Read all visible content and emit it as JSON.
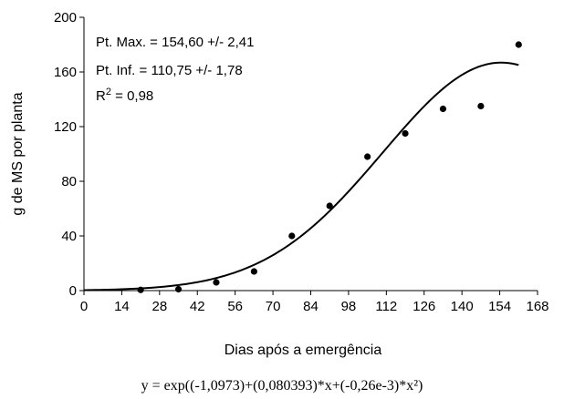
{
  "chart_data": {
    "type": "scatter",
    "xlabel": "Dias após a emergência",
    "ylabel": "g de MS por planta",
    "xlim": [
      0,
      168
    ],
    "ylim": [
      0,
      200
    ],
    "xticks": [
      0,
      14,
      28,
      42,
      56,
      70,
      84,
      98,
      112,
      126,
      140,
      154,
      168
    ],
    "yticks": [
      0,
      40,
      80,
      120,
      160,
      200
    ],
    "grid": false,
    "series": [
      {
        "type": "scatter",
        "x": [
          21,
          35,
          49,
          63,
          77,
          91,
          105,
          119,
          133,
          147,
          161
        ],
        "y": [
          0.5,
          1,
          6,
          14,
          40,
          62,
          98,
          115,
          133,
          135,
          180
        ]
      },
      {
        "type": "line",
        "model": "exp",
        "coefficients": [
          -1.0973,
          0.080393,
          -0.00026
        ],
        "x_range": [
          0,
          161
        ]
      }
    ],
    "annotations": [
      {
        "text": "Pt. Max. = 154,60 +/- 2,41"
      },
      {
        "text": "Pt. Inf. = 110,75 +/- 1,78"
      },
      {
        "text_base": "R",
        "text_sup": "2",
        "text_rest": " = 0,98"
      }
    ],
    "equation": "y = exp((-1,0973)+(0,080393)*x+(-0,26e-3)*x²)"
  }
}
